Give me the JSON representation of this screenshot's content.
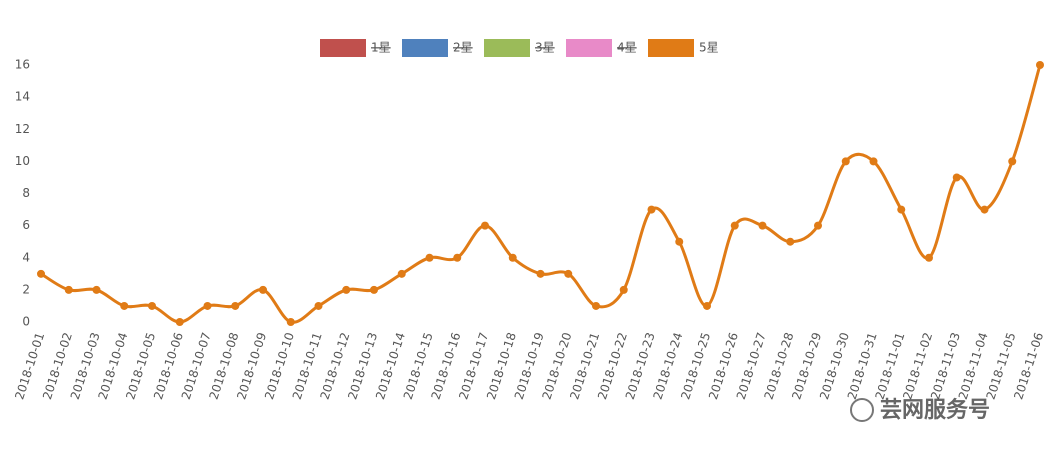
{
  "chart_data": {
    "type": "line",
    "categories": [
      "2018-10-01",
      "2018-10-02",
      "2018-10-03",
      "2018-10-04",
      "2018-10-05",
      "2018-10-06",
      "2018-10-07",
      "2018-10-08",
      "2018-10-09",
      "2018-10-10",
      "2018-10-11",
      "2018-10-12",
      "2018-10-13",
      "2018-10-14",
      "2018-10-15",
      "2018-10-16",
      "2018-10-17",
      "2018-10-18",
      "2018-10-19",
      "2018-10-20",
      "2018-10-21",
      "2018-10-22",
      "2018-10-23",
      "2018-10-24",
      "2018-10-25",
      "2018-10-26",
      "2018-10-27",
      "2018-10-28",
      "2018-10-29",
      "2018-10-30",
      "2018-10-31",
      "2018-11-01",
      "2018-11-02",
      "2018-11-03",
      "2018-11-04",
      "2018-11-05",
      "2018-11-06"
    ],
    "series": [
      {
        "name": "1星",
        "color": "#c0504d",
        "visible": false
      },
      {
        "name": "2星",
        "color": "#4f81bd",
        "visible": false
      },
      {
        "name": "3星",
        "color": "#9bbb59",
        "visible": false
      },
      {
        "name": "4星",
        "color": "#e88ac8",
        "visible": false
      },
      {
        "name": "5星",
        "color": "#e07b16",
        "visible": true,
        "values": [
          3,
          2,
          2,
          1,
          1,
          0,
          1,
          1,
          2,
          0,
          1,
          2,
          2,
          3,
          4,
          4,
          6,
          4,
          3,
          3,
          1,
          2,
          7,
          5,
          1,
          6,
          6,
          5,
          6,
          10,
          10,
          7,
          4,
          9,
          7,
          10,
          16
        ]
      }
    ],
    "ylim": [
      0,
      16
    ],
    "yticks": [
      0,
      2,
      4,
      6,
      8,
      10,
      12,
      14,
      16
    ],
    "grid": false,
    "smooth": true,
    "watermark": "芸网服务号"
  }
}
